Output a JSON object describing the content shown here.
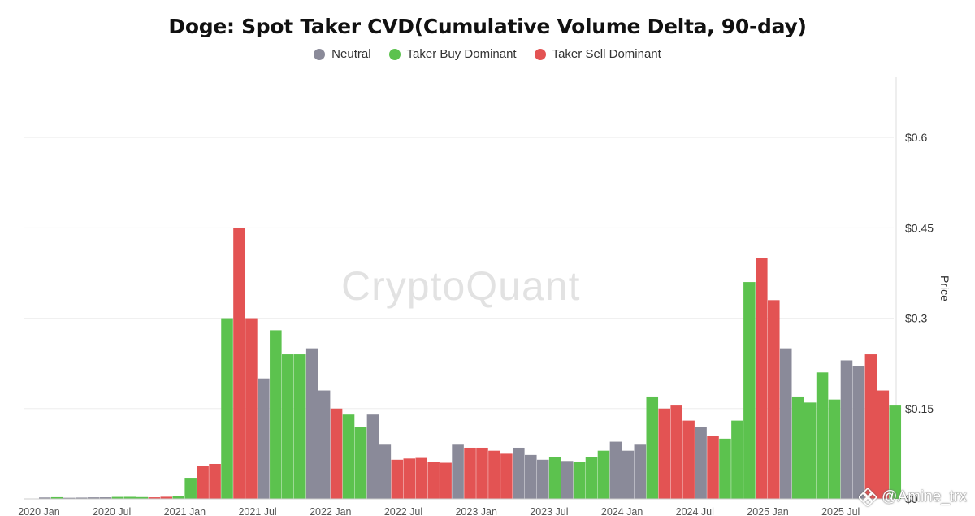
{
  "chart_data": {
    "type": "bar",
    "title": "Doge: Spot Taker CVD(Cumulative Volume Delta, 90-day)",
    "ylabel": "Price",
    "xlabel": "",
    "ylim": [
      0,
      0.7
    ],
    "yticks": [
      {
        "value": 0,
        "label": "$0"
      },
      {
        "value": 0.15,
        "label": "$0.15"
      },
      {
        "value": 0.3,
        "label": "$0.3"
      },
      {
        "value": 0.45,
        "label": "$0.45"
      },
      {
        "value": 0.6,
        "label": "$0.6"
      }
    ],
    "xticks": [
      "2020 Jan",
      "2020 Jul",
      "2021 Jan",
      "2021 Jul",
      "2022 Jan",
      "2022 Jul",
      "2023 Jan",
      "2023 Jul",
      "2024 Jan",
      "2024 Jul",
      "2025 Jan",
      "2025 Jul"
    ],
    "x_unit": "month",
    "x_start": "2020 Jan",
    "grid": true,
    "legend_position": "top-center",
    "series": [
      {
        "name": "Neutral",
        "color": "#8a8a99"
      },
      {
        "name": "Taker Buy Dominant",
        "color": "#5cc24e"
      },
      {
        "name": "Taker Sell Dominant",
        "color": "#e35353"
      }
    ],
    "data": [
      {
        "x": "2020 Jan",
        "y": 0.0023,
        "s": "Neutral"
      },
      {
        "x": "2020 Feb",
        "y": 0.0028,
        "s": "Taker Buy Dominant"
      },
      {
        "x": "2020 Mar",
        "y": 0.0018,
        "s": "Neutral"
      },
      {
        "x": "2020 Apr",
        "y": 0.0021,
        "s": "Neutral"
      },
      {
        "x": "2020 May",
        "y": 0.0025,
        "s": "Neutral"
      },
      {
        "x": "2020 Jun",
        "y": 0.0026,
        "s": "Neutral"
      },
      {
        "x": "2020 Jul",
        "y": 0.0033,
        "s": "Taker Buy Dominant"
      },
      {
        "x": "2020 Aug",
        "y": 0.0034,
        "s": "Taker Buy Dominant"
      },
      {
        "x": "2020 Sep",
        "y": 0.003,
        "s": "Taker Buy Dominant"
      },
      {
        "x": "2020 Oct",
        "y": 0.0026,
        "s": "Taker Sell Dominant"
      },
      {
        "x": "2020 Nov",
        "y": 0.0035,
        "s": "Taker Sell Dominant"
      },
      {
        "x": "2020 Dec",
        "y": 0.0045,
        "s": "Taker Buy Dominant"
      },
      {
        "x": "2021 Jan",
        "y": 0.035,
        "s": "Taker Buy Dominant"
      },
      {
        "x": "2021 Feb",
        "y": 0.055,
        "s": "Taker Sell Dominant"
      },
      {
        "x": "2021 Mar",
        "y": 0.058,
        "s": "Taker Sell Dominant"
      },
      {
        "x": "2021 Apr",
        "y": 0.3,
        "s": "Taker Buy Dominant"
      },
      {
        "x": "2021 May",
        "y": 0.45,
        "s": "Taker Sell Dominant"
      },
      {
        "x": "2021 Jun",
        "y": 0.3,
        "s": "Taker Sell Dominant"
      },
      {
        "x": "2021 Jul",
        "y": 0.2,
        "s": "Neutral"
      },
      {
        "x": "2021 Aug",
        "y": 0.28,
        "s": "Taker Buy Dominant"
      },
      {
        "x": "2021 Sep",
        "y": 0.24,
        "s": "Taker Buy Dominant"
      },
      {
        "x": "2021 Oct",
        "y": 0.24,
        "s": "Taker Buy Dominant"
      },
      {
        "x": "2021 Nov",
        "y": 0.25,
        "s": "Neutral"
      },
      {
        "x": "2021 Dec",
        "y": 0.18,
        "s": "Neutral"
      },
      {
        "x": "2022 Jan",
        "y": 0.15,
        "s": "Taker Sell Dominant"
      },
      {
        "x": "2022 Feb",
        "y": 0.14,
        "s": "Taker Buy Dominant"
      },
      {
        "x": "2022 Mar",
        "y": 0.12,
        "s": "Taker Buy Dominant"
      },
      {
        "x": "2022 Apr",
        "y": 0.14,
        "s": "Neutral"
      },
      {
        "x": "2022 May",
        "y": 0.09,
        "s": "Neutral"
      },
      {
        "x": "2022 Jun",
        "y": 0.065,
        "s": "Taker Sell Dominant"
      },
      {
        "x": "2022 Jul",
        "y": 0.067,
        "s": "Taker Sell Dominant"
      },
      {
        "x": "2022 Aug",
        "y": 0.068,
        "s": "Taker Sell Dominant"
      },
      {
        "x": "2022 Sep",
        "y": 0.061,
        "s": "Taker Sell Dominant"
      },
      {
        "x": "2022 Oct",
        "y": 0.06,
        "s": "Taker Sell Dominant"
      },
      {
        "x": "2022 Nov",
        "y": 0.09,
        "s": "Neutral"
      },
      {
        "x": "2022 Dec",
        "y": 0.085,
        "s": "Taker Sell Dominant"
      },
      {
        "x": "2023 Jan",
        "y": 0.085,
        "s": "Taker Sell Dominant"
      },
      {
        "x": "2023 Feb",
        "y": 0.08,
        "s": "Taker Sell Dominant"
      },
      {
        "x": "2023 Mar",
        "y": 0.075,
        "s": "Taker Sell Dominant"
      },
      {
        "x": "2023 Apr",
        "y": 0.085,
        "s": "Neutral"
      },
      {
        "x": "2023 May",
        "y": 0.073,
        "s": "Neutral"
      },
      {
        "x": "2023 Jun",
        "y": 0.065,
        "s": "Neutral"
      },
      {
        "x": "2023 Jul",
        "y": 0.07,
        "s": "Taker Buy Dominant"
      },
      {
        "x": "2023 Aug",
        "y": 0.063,
        "s": "Neutral"
      },
      {
        "x": "2023 Sep",
        "y": 0.062,
        "s": "Taker Buy Dominant"
      },
      {
        "x": "2023 Oct",
        "y": 0.07,
        "s": "Taker Buy Dominant"
      },
      {
        "x": "2023 Nov",
        "y": 0.08,
        "s": "Taker Buy Dominant"
      },
      {
        "x": "2023 Dec",
        "y": 0.095,
        "s": "Neutral"
      },
      {
        "x": "2024 Jan",
        "y": 0.08,
        "s": "Neutral"
      },
      {
        "x": "2024 Feb",
        "y": 0.09,
        "s": "Neutral"
      },
      {
        "x": "2024 Mar",
        "y": 0.17,
        "s": "Taker Buy Dominant"
      },
      {
        "x": "2024 Apr",
        "y": 0.15,
        "s": "Taker Sell Dominant"
      },
      {
        "x": "2024 May",
        "y": 0.155,
        "s": "Taker Sell Dominant"
      },
      {
        "x": "2024 Jun",
        "y": 0.13,
        "s": "Taker Sell Dominant"
      },
      {
        "x": "2024 Jul",
        "y": 0.12,
        "s": "Neutral"
      },
      {
        "x": "2024 Aug",
        "y": 0.105,
        "s": "Taker Sell Dominant"
      },
      {
        "x": "2024 Sep",
        "y": 0.1,
        "s": "Taker Buy Dominant"
      },
      {
        "x": "2024 Oct",
        "y": 0.13,
        "s": "Taker Buy Dominant"
      },
      {
        "x": "2024 Nov",
        "y": 0.36,
        "s": "Taker Buy Dominant"
      },
      {
        "x": "2024 Dec",
        "y": 0.4,
        "s": "Taker Sell Dominant"
      },
      {
        "x": "2025 Jan",
        "y": 0.33,
        "s": "Taker Sell Dominant"
      },
      {
        "x": "2025 Feb",
        "y": 0.25,
        "s": "Neutral"
      },
      {
        "x": "2025 Mar",
        "y": 0.17,
        "s": "Taker Buy Dominant"
      },
      {
        "x": "2025 Apr",
        "y": 0.16,
        "s": "Taker Buy Dominant"
      },
      {
        "x": "2025 May",
        "y": 0.21,
        "s": "Taker Buy Dominant"
      },
      {
        "x": "2025 Jun",
        "y": 0.165,
        "s": "Taker Buy Dominant"
      },
      {
        "x": "2025 Jul",
        "y": 0.23,
        "s": "Neutral"
      },
      {
        "x": "2025 Aug",
        "y": 0.22,
        "s": "Neutral"
      },
      {
        "x": "2025 Sep",
        "y": 0.24,
        "s": "Taker Sell Dominant"
      },
      {
        "x": "2025 Oct",
        "y": 0.18,
        "s": "Taker Sell Dominant"
      },
      {
        "x": "2025 Nov",
        "y": 0.155,
        "s": "Taker Buy Dominant"
      }
    ]
  },
  "watermark": "CryptoQuant",
  "credit": "@Amine_trx"
}
